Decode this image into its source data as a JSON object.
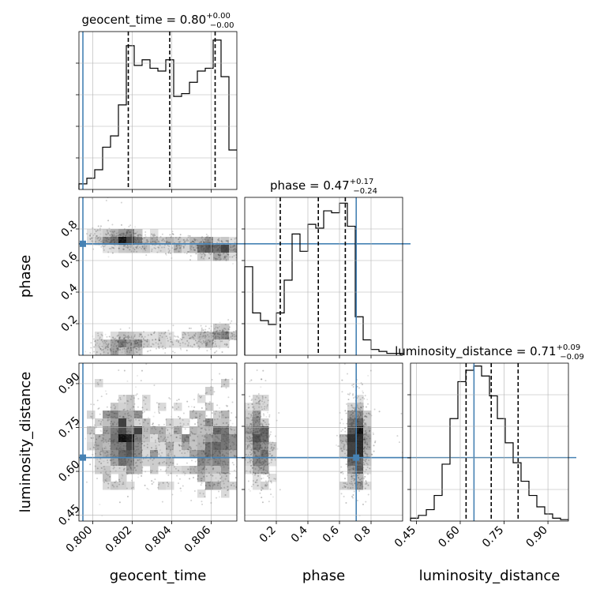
{
  "chart_data": {
    "type": "corner",
    "parameters": [
      "geocent_time",
      "phase",
      "luminosity_distance"
    ],
    "truths": {
      "geocent_time": 0.7995,
      "phase": 0.706,
      "luminosity_distance": 0.647
    },
    "colors": {
      "truth": "#4682b4",
      "hist": "#000000",
      "grid": "#b0b0b0"
    },
    "grid": true,
    "marginals": [
      {
        "param": "geocent_time",
        "title": {
          "prefix": "geocent_time = ",
          "value": "0.80",
          "plus": "+0.00",
          "minus": "−0.00"
        },
        "range": [
          0.7993,
          0.8073
        ],
        "quantiles": [
          0.8018,
          0.8039,
          0.8062
        ],
        "counts": [
          0.2,
          0.4,
          0.7,
          1.5,
          1.9,
          3.0,
          5.1,
          4.4,
          4.6,
          4.3,
          4.2,
          4.6,
          3.3,
          3.4,
          3.8,
          4.2,
          4.3,
          5.3,
          4.0,
          1.4
        ],
        "ymax": 5.6,
        "xticks": [
          0.8,
          0.802,
          0.804,
          0.806
        ],
        "xtick_labels": [
          "0.800",
          "0.802",
          "0.804",
          "0.806"
        ]
      },
      {
        "param": "phase",
        "title": {
          "prefix": "phase = ",
          "value": "0.47",
          "plus": "+0.17",
          "minus": "−0.24"
        },
        "range": [
          0.0,
          1.0
        ],
        "quantiles": [
          0.225,
          0.466,
          0.637
        ],
        "counts": [
          0.46,
          0.22,
          0.18,
          0.16,
          0.22,
          0.39,
          0.63,
          0.54,
          0.68,
          0.66,
          0.75,
          0.74,
          0.79,
          0.67,
          0.2,
          0.08,
          0.03,
          0.02,
          0.01,
          0.01
        ],
        "ymax": 0.82,
        "xticks": [
          0.2,
          0.4,
          0.6,
          0.8
        ],
        "xtick_labels": [
          "0.2",
          "0.4",
          "0.6",
          "0.8"
        ]
      },
      {
        "param": "luminosity_distance",
        "title": {
          "prefix": "luminosity_distance = ",
          "value": "0.71",
          "plus": "+0.09",
          "minus": "−0.09"
        },
        "range": [
          0.43,
          0.97
        ],
        "quantiles": [
          0.62,
          0.706,
          0.798
        ],
        "counts": [
          0.02,
          0.04,
          0.08,
          0.18,
          0.4,
          0.72,
          0.98,
          1.06,
          1.09,
          1.02,
          0.88,
          0.72,
          0.55,
          0.41,
          0.28,
          0.18,
          0.1,
          0.05,
          0.02,
          0.01
        ],
        "ymax": 1.11,
        "xticks": [
          0.45,
          0.6,
          0.75,
          0.9
        ],
        "xtick_labels": [
          "0.45",
          "0.60",
          "0.75",
          "0.90"
        ]
      }
    ],
    "yaxis": {
      "phase": {
        "ticks": [
          0.2,
          0.4,
          0.6,
          0.8
        ],
        "labels": [
          "0.2",
          "0.4",
          "0.6",
          "0.8"
        ]
      },
      "luminosity_distance": {
        "ticks": [
          0.45,
          0.6,
          0.75,
          0.9
        ],
        "labels": [
          "0.45",
          "0.60",
          "0.75",
          "0.90"
        ]
      }
    },
    "xlabels": [
      "geocent_time",
      "phase",
      "luminosity_distance"
    ],
    "ylabels": [
      "phase",
      "luminosity_distance"
    ]
  }
}
